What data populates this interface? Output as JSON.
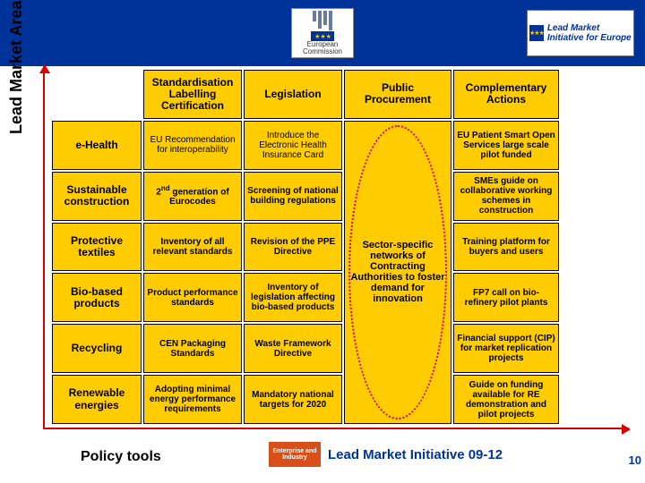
{
  "colors": {
    "navy": "#003399",
    "yellow": "#ffcc00",
    "arrow": "#d40000",
    "oval": "#cc0066",
    "ei_orange": "#d94f1a"
  },
  "topbar": {
    "ec_label": "European Commission",
    "lmi_text": "Lead Market Initiative for Europe"
  },
  "axes": {
    "y_label": "Lead Market Areas",
    "x_label": "Policy tools"
  },
  "footer": {
    "ei_label": "Enterprise and Industry",
    "banner": "Lead Market Initiative 09-12",
    "slide_number": "10"
  },
  "grid": {
    "col_headers": [
      "Standardisation Labelling Certification",
      "Legislation",
      "Public Procurement",
      "Complementary Actions"
    ],
    "row_headers": [
      "e-Health",
      "Sustainable construction",
      "Protective textiles",
      "Bio-based products",
      "Recycling",
      "Renewable energies"
    ],
    "procurement_text": "Sector-specific networks of Contracting Authorities to foster demand for innovation",
    "cells": {
      "r0": {
        "std": "EU Recommendation for interoperability",
        "leg": "Introduce the Electronic Health Insurance Card",
        "comp": "EU Patient Smart Open Services large scale pilot funded"
      },
      "r1": {
        "std_prefix": "2",
        "std_sup": "nd",
        "std_suffix": " generation of Eurocodes",
        "leg": "Screening of national building regulations",
        "comp": "SMEs guide on collaborative working schemes in construction"
      },
      "r2": {
        "std": "Inventory of all relevant standards",
        "leg": "Revision of the PPE Directive",
        "comp": "Training platform for buyers and users"
      },
      "r3": {
        "std": "Product performance standards",
        "leg": "Inventory of legislation affecting bio-based products",
        "comp": "FP7 call on bio-refinery pilot plants"
      },
      "r4": {
        "std": "CEN Packaging Standards",
        "leg": "Waste Framework Directive",
        "comp": "Financial support (CIP) for market replication projects"
      },
      "r5": {
        "std": "Adopting minimal energy performance requirements",
        "leg": "Mandatory national targets for 2020",
        "comp": "Guide on funding available for RE demonstration and pilot projects"
      }
    }
  }
}
